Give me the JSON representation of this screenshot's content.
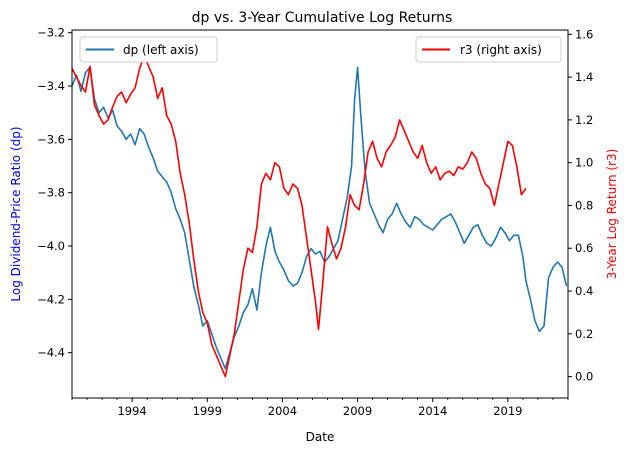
{
  "chart_data": {
    "type": "line",
    "title": "dp vs. 3-Year Cumulative Log Returns",
    "xlabel": "Date",
    "y_left_label": "Log Dividend-Price Ratio (dp)",
    "y_right_label": "3-Year Log Return (r3)",
    "y_left_label_color": "#0000ff",
    "y_right_label_color": "#ff0000",
    "xlim": [
      1990.0,
      2023.0
    ],
    "x_ticks": [
      1994,
      1999,
      2004,
      2009,
      2014,
      2019
    ],
    "x_tick_labels": [
      "1994",
      "1999",
      "2004",
      "2009",
      "2014",
      "2019"
    ],
    "y_left_lim": [
      -4.57,
      -3.19
    ],
    "y_left_ticks": [
      -3.2,
      -3.4,
      -3.6,
      -3.8,
      -4.0,
      -4.2,
      -4.4
    ],
    "y_left_tick_labels": [
      "−3.2",
      "−3.4",
      "−3.6",
      "−3.8",
      "−4.0",
      "−4.2",
      "−4.4"
    ],
    "y_right_lim": [
      -0.1,
      1.62
    ],
    "y_right_ticks": [
      0.0,
      0.2,
      0.4,
      0.6,
      0.8,
      1.0,
      1.2,
      1.4,
      1.6
    ],
    "y_right_tick_labels": [
      "0.0",
      "0.2",
      "0.4",
      "0.6",
      "0.8",
      "1.0",
      "1.2",
      "1.4",
      "1.6"
    ],
    "grid": false,
    "series": [
      {
        "name": "dp (left axis)",
        "axis": "left",
        "color": "#1f77b4",
        "x": [
          1990.0,
          1990.3,
          1990.6,
          1990.9,
          1991.2,
          1991.5,
          1991.8,
          1992.1,
          1992.4,
          1992.7,
          1993.0,
          1993.3,
          1993.6,
          1993.9,
          1994.2,
          1994.5,
          1994.8,
          1995.1,
          1995.4,
          1995.7,
          1996.0,
          1996.3,
          1996.6,
          1996.9,
          1997.2,
          1997.5,
          1997.8,
          1998.1,
          1998.4,
          1998.7,
          1999.0,
          1999.3,
          1999.6,
          1999.9,
          2000.2,
          2000.5,
          2000.8,
          2001.1,
          2001.4,
          2001.7,
          2002.0,
          2002.3,
          2002.6,
          2002.9,
          2003.2,
          2003.5,
          2003.8,
          2004.1,
          2004.4,
          2004.7,
          2005.0,
          2005.3,
          2005.6,
          2005.9,
          2006.2,
          2006.5,
          2006.8,
          2007.1,
          2007.4,
          2007.7,
          2008.0,
          2008.3,
          2008.6,
          2008.8,
          2009.0,
          2009.2,
          2009.5,
          2009.8,
          2010.1,
          2010.4,
          2010.7,
          2011.0,
          2011.3,
          2011.6,
          2011.9,
          2012.2,
          2012.5,
          2012.8,
          2013.1,
          2013.4,
          2013.7,
          2014.0,
          2014.3,
          2014.6,
          2014.9,
          2015.2,
          2015.5,
          2015.8,
          2016.1,
          2016.4,
          2016.7,
          2017.0,
          2017.3,
          2017.6,
          2017.9,
          2018.2,
          2018.5,
          2018.8,
          2019.1,
          2019.4,
          2019.7,
          2020.0,
          2020.2,
          2020.5,
          2020.8,
          2021.1,
          2021.4,
          2021.7,
          2022.0,
          2022.3,
          2022.6,
          2022.9
        ],
        "y": [
          -3.4,
          -3.36,
          -3.42,
          -3.35,
          -3.33,
          -3.45,
          -3.5,
          -3.48,
          -3.52,
          -3.49,
          -3.55,
          -3.57,
          -3.6,
          -3.58,
          -3.62,
          -3.56,
          -3.58,
          -3.63,
          -3.67,
          -3.72,
          -3.74,
          -3.76,
          -3.8,
          -3.86,
          -3.9,
          -3.95,
          -4.05,
          -4.15,
          -4.22,
          -4.3,
          -4.28,
          -4.33,
          -4.38,
          -4.42,
          -4.46,
          -4.4,
          -4.34,
          -4.3,
          -4.25,
          -4.22,
          -4.16,
          -4.24,
          -4.1,
          -4.0,
          -3.93,
          -4.02,
          -4.06,
          -4.09,
          -4.13,
          -4.15,
          -4.14,
          -4.1,
          -4.04,
          -4.01,
          -4.03,
          -4.02,
          -4.06,
          -4.04,
          -4.01,
          -3.98,
          -3.9,
          -3.82,
          -3.7,
          -3.45,
          -3.33,
          -3.5,
          -3.72,
          -3.84,
          -3.88,
          -3.92,
          -3.95,
          -3.9,
          -3.88,
          -3.84,
          -3.88,
          -3.91,
          -3.93,
          -3.89,
          -3.9,
          -3.92,
          -3.93,
          -3.94,
          -3.92,
          -3.9,
          -3.89,
          -3.88,
          -3.91,
          -3.95,
          -3.99,
          -3.96,
          -3.93,
          -3.92,
          -3.96,
          -3.99,
          -4.0,
          -3.97,
          -3.93,
          -3.95,
          -3.98,
          -3.96,
          -3.96,
          -4.04,
          -4.13,
          -4.2,
          -4.28,
          -4.32,
          -4.3,
          -4.12,
          -4.08,
          -4.06,
          -4.08,
          -4.15
        ],
        "label_x": [
          1994,
          1999,
          2000.3,
          2003.3,
          2009.0,
          2016.0,
          2021.3
        ],
        "label_note": ""
      },
      {
        "name": "r3 (right axis)",
        "axis": "right",
        "color": "#ff0000",
        "x": [
          1990.0,
          1990.3,
          1990.6,
          1990.9,
          1991.2,
          1991.5,
          1991.8,
          1992.1,
          1992.4,
          1992.7,
          1993.0,
          1993.3,
          1993.6,
          1993.9,
          1994.2,
          1994.5,
          1994.8,
          1995.1,
          1995.4,
          1995.7,
          1996.0,
          1996.3,
          1996.6,
          1996.9,
          1997.2,
          1997.5,
          1997.8,
          1998.1,
          1998.4,
          1998.7,
          1999.0,
          1999.3,
          1999.6,
          1999.9,
          2000.2,
          2000.5,
          2000.8,
          2001.1,
          2001.4,
          2001.7,
          2002.0,
          2002.3,
          2002.6,
          2002.9,
          2003.2,
          2003.5,
          2003.8,
          2004.1,
          2004.4,
          2004.7,
          2005.0,
          2005.3,
          2005.6,
          2005.9,
          2006.2,
          2006.4,
          2006.7,
          2007.0,
          2007.3,
          2007.6,
          2007.9,
          2008.2,
          2008.5,
          2008.8,
          2009.1,
          2009.4,
          2009.7,
          2010.0,
          2010.3,
          2010.6,
          2010.9,
          2011.2,
          2011.5,
          2011.8,
          2012.1,
          2012.4,
          2012.7,
          2013.0,
          2013.3,
          2013.6,
          2013.9,
          2014.2,
          2014.5,
          2014.8,
          2015.1,
          2015.4,
          2015.7,
          2016.0,
          2016.3,
          2016.6,
          2016.9,
          2017.2,
          2017.5,
          2017.8,
          2018.1,
          2018.4,
          2018.7,
          2019.0,
          2019.3,
          2019.6,
          2019.9,
          2020.2
        ],
        "y": [
          1.44,
          1.4,
          1.36,
          1.33,
          1.45,
          1.27,
          1.22,
          1.18,
          1.2,
          1.26,
          1.31,
          1.33,
          1.28,
          1.32,
          1.35,
          1.44,
          1.5,
          1.45,
          1.4,
          1.3,
          1.35,
          1.22,
          1.18,
          1.1,
          0.95,
          0.85,
          0.72,
          0.55,
          0.4,
          0.3,
          0.25,
          0.15,
          0.1,
          0.05,
          0.0,
          0.1,
          0.2,
          0.35,
          0.5,
          0.6,
          0.58,
          0.7,
          0.9,
          0.95,
          0.92,
          1.0,
          0.98,
          0.88,
          0.85,
          0.9,
          0.88,
          0.8,
          0.65,
          0.5,
          0.35,
          0.22,
          0.45,
          0.7,
          0.62,
          0.55,
          0.6,
          0.7,
          0.85,
          0.8,
          0.78,
          0.9,
          1.05,
          1.1,
          1.02,
          0.98,
          1.05,
          1.08,
          1.12,
          1.2,
          1.15,
          1.1,
          1.05,
          1.02,
          1.08,
          1.0,
          0.95,
          0.98,
          0.92,
          0.95,
          0.96,
          0.94,
          0.98,
          0.97,
          1.0,
          1.05,
          1.02,
          0.95,
          0.9,
          0.88,
          0.8,
          0.9,
          1.0,
          1.1,
          1.08,
          0.98,
          0.85,
          0.88
        ]
      }
    ],
    "legend": [
      {
        "label": "dp (left axis)",
        "position": "upper-left"
      },
      {
        "label": "r3 (right axis)",
        "position": "upper-right"
      }
    ]
  }
}
